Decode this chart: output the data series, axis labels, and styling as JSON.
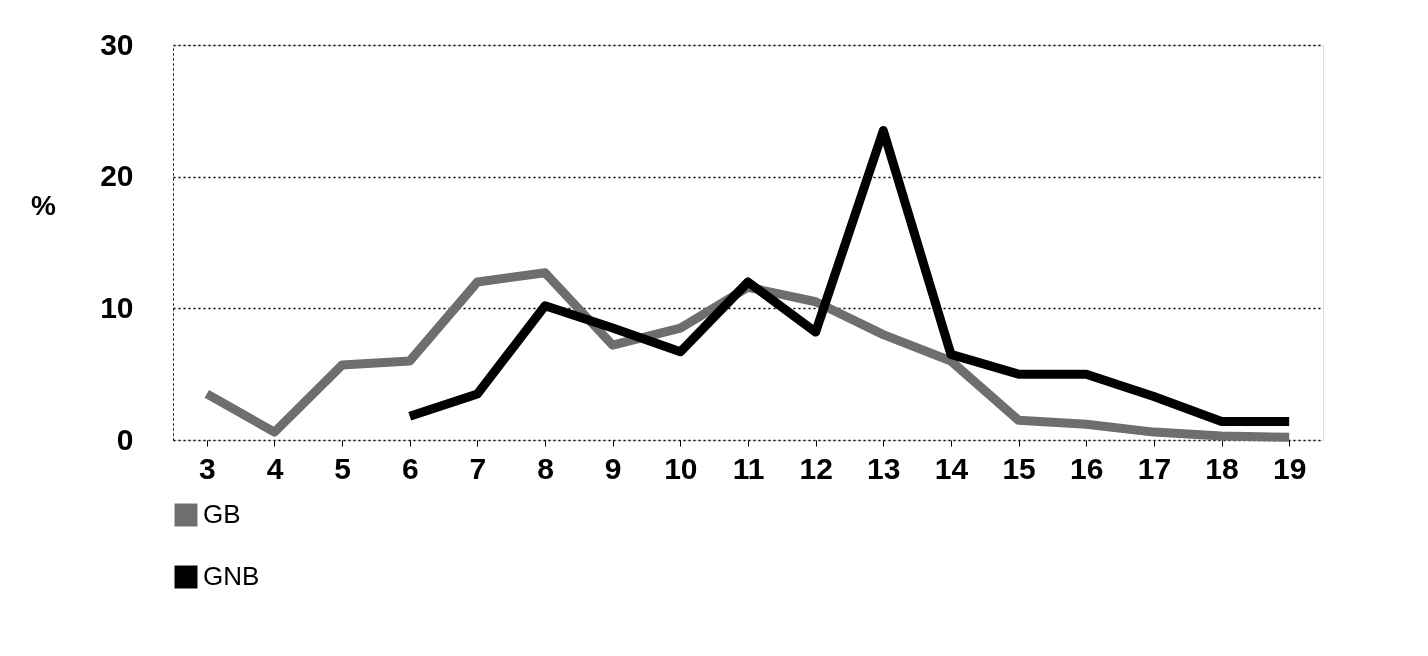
{
  "chart_data": {
    "type": "line",
    "categories": [
      "3",
      "4",
      "5",
      "6",
      "7",
      "8",
      "9",
      "10",
      "11",
      "12",
      "13",
      "14",
      "15",
      "16",
      "17",
      "18",
      "19"
    ],
    "ylabel": "%",
    "ylim": [
      0,
      30
    ],
    "yticks": [
      0,
      10,
      20,
      30
    ],
    "grid": "y",
    "legend": "bottom",
    "line_style": "solid",
    "series": [
      {
        "name": "GB",
        "color": "#6e6e6e",
        "values": [
          3.5,
          0.6,
          5.7,
          6.0,
          12.0,
          12.7,
          7.2,
          8.5,
          11.6,
          10.5,
          8.0,
          6.0,
          1.5,
          1.2,
          0.6,
          0.3,
          0.2
        ]
      },
      {
        "name": "GNB",
        "color": "#000000",
        "values": [
          null,
          null,
          null,
          1.8,
          3.5,
          10.2,
          8.5,
          6.7,
          12.0,
          8.2,
          23.5,
          6.5,
          5.0,
          5.0,
          3.3,
          1.4,
          1.4
        ]
      }
    ]
  }
}
